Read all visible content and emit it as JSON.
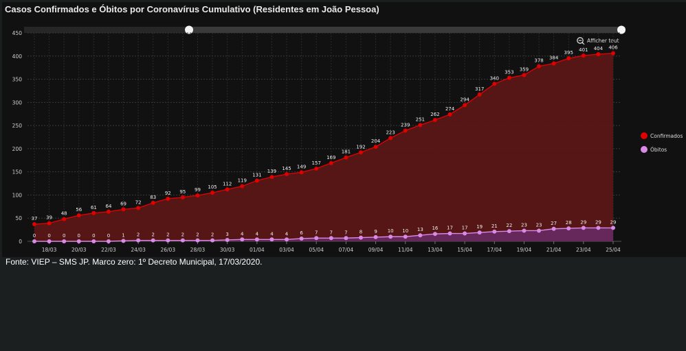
{
  "page": {
    "title": "Casos Confirmados e Óbitos por Coronavírus Cumulativo (Residentes em João Pessoa)",
    "source": "Fonte: VIEP – SMS JP. Marco zero: 1º Decreto Municipal, 17/03/2020.",
    "reset_zoom_label": "Afficher tout"
  },
  "colors": {
    "confirmados": "#e00000",
    "obitos": "#d98ae6",
    "area_confirmados": "#5a1716",
    "area_obitos": "#6a2a66",
    "grid": "#3a3a3a",
    "text": "#cfcfcf"
  },
  "chart_data": {
    "type": "area",
    "title": "Casos Confirmados e Óbitos por Coronavírus Cumulativo (Residentes em João Pessoa)",
    "x": [
      "17/03",
      "18/03",
      "19/03",
      "20/03",
      "21/03",
      "22/03",
      "23/03",
      "24/03",
      "25/03",
      "26/03",
      "27/03",
      "28/03",
      "29/03",
      "30/03",
      "31/03",
      "01/04",
      "02/04",
      "03/04",
      "04/04",
      "05/04",
      "06/04",
      "07/04",
      "08/04",
      "09/04",
      "10/04",
      "11/04",
      "12/04",
      "13/04",
      "14/04",
      "15/04",
      "16/04",
      "17/04",
      "18/04",
      "19/04",
      "20/04",
      "21/04",
      "22/04",
      "23/04",
      "24/04",
      "25/04"
    ],
    "x_tick_labels": [
      "18/03",
      "20/03",
      "22/03",
      "24/03",
      "26/03",
      "28/03",
      "30/03",
      "01/04",
      "03/04",
      "05/04",
      "07/04",
      "09/04",
      "11/04",
      "13/04",
      "15/04",
      "17/04",
      "19/04",
      "21/04",
      "23/04",
      "25/04"
    ],
    "ylim": [
      0,
      450
    ],
    "y_ticks": [
      0,
      50,
      100,
      150,
      200,
      250,
      300,
      350,
      400,
      450
    ],
    "grid": true,
    "legend_position": "right",
    "series": [
      {
        "name": "Confirmados",
        "values": [
          37,
          39,
          48,
          56,
          61,
          64,
          69,
          72,
          83,
          92,
          95,
          99,
          105,
          112,
          119,
          131,
          139,
          145,
          149,
          157,
          169,
          181,
          192,
          204,
          223,
          239,
          251,
          262,
          274,
          294,
          317,
          340,
          353,
          359,
          378,
          384,
          395,
          401,
          404,
          406
        ]
      },
      {
        "name": "Óbitos",
        "values": [
          0,
          0,
          0,
          0,
          0,
          0,
          1,
          2,
          2,
          2,
          2,
          2,
          2,
          3,
          4,
          4,
          4,
          4,
          6,
          7,
          7,
          7,
          8,
          9,
          10,
          10,
          13,
          16,
          17,
          17,
          19,
          21,
          22,
          23,
          23,
          27,
          28,
          29,
          29,
          29
        ]
      }
    ]
  }
}
